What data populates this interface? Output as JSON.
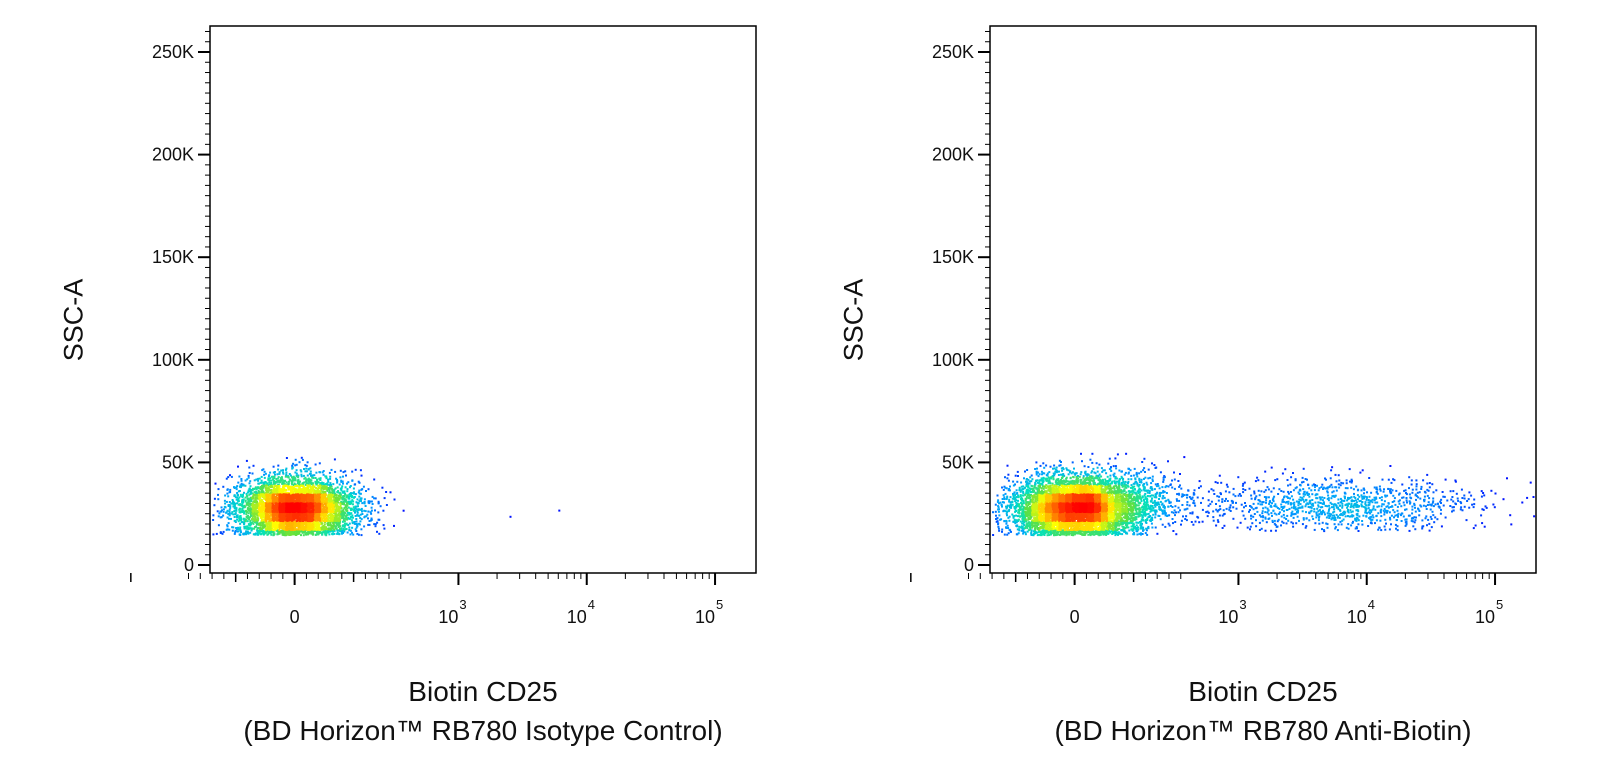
{
  "chart_data": [
    {
      "type": "scatter",
      "subtype": "flow-cytometry-density-dot-plot",
      "ylabel": "SSC-A",
      "xlabel_line1": "Biotin CD25",
      "xlabel_line2": "(BD Horizon™ RB780 Isotype Control)",
      "y_scale": "linear",
      "ylim": [
        -5000,
        262144
      ],
      "y_ticks": [
        0,
        50000,
        100000,
        150000,
        200000,
        250000
      ],
      "y_tick_labels": [
        "0",
        "50K",
        "100K",
        "150K",
        "200K",
        "250K"
      ],
      "x_scale": "biexponential",
      "x_ticks": [
        0,
        1000,
        10000,
        100000
      ],
      "x_tick_labels": [
        {
          "base": "0",
          "exp": ""
        },
        {
          "base": "10",
          "exp": "3"
        },
        {
          "base": "10",
          "exp": "4"
        },
        {
          "base": "10",
          "exp": "5"
        }
      ],
      "grid": false,
      "colormap": [
        "#0000ff",
        "#00a0ff",
        "#00e0c0",
        "#60e040",
        "#ffff00",
        "#ff8000",
        "#ff0000"
      ],
      "populations": [
        {
          "name": "",
          "x_center": 0,
          "y_center": 28000,
          "count": 5200,
          "x_spread_display": 0.055,
          "y_spread": 7500,
          "y_min": 15000,
          "y_max": 55000
        },
        {
          "name": "",
          "x_center": 150,
          "y_center": 30000,
          "count": 60,
          "x_spread_display": 0.03,
          "y_spread": 8000,
          "y_min": 18000,
          "y_max": 50000
        }
      ],
      "outliers": [
        [
          2500,
          24000
        ],
        [
          6000,
          27000
        ]
      ]
    },
    {
      "type": "scatter",
      "subtype": "flow-cytometry-density-dot-plot",
      "ylabel": "SSC-A",
      "xlabel_line1": "Biotin CD25",
      "xlabel_line2": "(BD Horizon™ RB780 Anti-Biotin)",
      "y_scale": "linear",
      "ylim": [
        -5000,
        262144
      ],
      "y_ticks": [
        0,
        50000,
        100000,
        150000,
        200000,
        250000
      ],
      "y_tick_labels": [
        "0",
        "50K",
        "100K",
        "150K",
        "200K",
        "250K"
      ],
      "x_scale": "biexponential",
      "x_ticks": [
        0,
        1000,
        10000,
        100000
      ],
      "x_tick_labels": [
        {
          "base": "0",
          "exp": ""
        },
        {
          "base": "10",
          "exp": "3"
        },
        {
          "base": "10",
          "exp": "4"
        },
        {
          "base": "10",
          "exp": "5"
        }
      ],
      "grid": false,
      "colormap": [
        "#0000ff",
        "#00a0ff",
        "#00e0c0",
        "#60e040",
        "#ffff00",
        "#ff8000",
        "#ff0000"
      ],
      "populations": [
        {
          "name": "",
          "x_center": 0,
          "y_center": 28000,
          "count": 5600,
          "x_spread_display": 0.06,
          "y_spread": 7500,
          "y_min": 15000,
          "y_max": 56000
        },
        {
          "name": "",
          "x_center": 250,
          "y_center": 32000,
          "count": 900,
          "x_spread_display": 0.08,
          "y_spread": 7500,
          "y_min": 15000,
          "y_max": 55000
        },
        {
          "name": "",
          "x_center": 6000,
          "y_center": 30000,
          "count": 1100,
          "x_spread_display": 0.13,
          "y_spread": 6500,
          "y_min": 17000,
          "y_max": 52000
        }
      ],
      "outliers": []
    }
  ]
}
